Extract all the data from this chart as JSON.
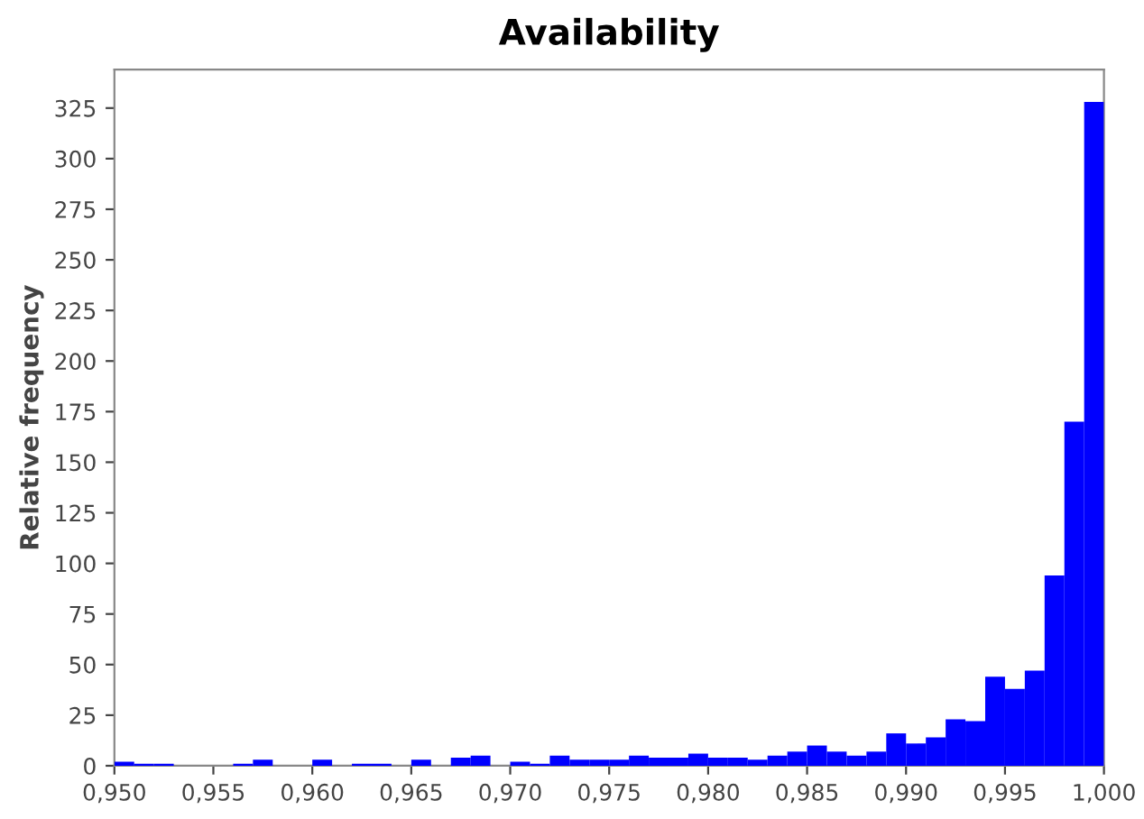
{
  "chart_data": {
    "type": "histogram",
    "title": "Availability",
    "ylabel": "Relative frequency",
    "bins": [
      0.95,
      0.951,
      0.952,
      0.953,
      0.954,
      0.955,
      0.956,
      0.957,
      0.958,
      0.959,
      0.96,
      0.961,
      0.962,
      0.963,
      0.964,
      0.965,
      0.966,
      0.967,
      0.968,
      0.969,
      0.97,
      0.971,
      0.972,
      0.973,
      0.974,
      0.975,
      0.976,
      0.977,
      0.978,
      0.979,
      0.98,
      0.981,
      0.982,
      0.983,
      0.984,
      0.985,
      0.986,
      0.987,
      0.988,
      0.989,
      0.99,
      0.991,
      0.992,
      0.993,
      0.994,
      0.995,
      0.996,
      0.997,
      0.998,
      0.999,
      1.0
    ],
    "values": [
      2,
      1,
      1,
      0,
      0,
      0,
      1,
      3,
      0,
      0,
      3,
      0,
      1,
      1,
      0,
      3,
      0,
      4,
      5,
      0,
      2,
      1,
      5,
      3,
      3,
      3,
      5,
      4,
      4,
      6,
      4,
      4,
      3,
      5,
      7,
      10,
      7,
      5,
      7,
      16,
      11,
      14,
      23,
      22,
      44,
      38,
      47,
      94,
      170,
      328
    ],
    "color": "#0000ff",
    "xlim": [
      0.95,
      1.0
    ],
    "xticks": [
      {
        "value": 0.95,
        "label": "0,950"
      },
      {
        "value": 0.955,
        "label": "0,955"
      },
      {
        "value": 0.96,
        "label": "0,960"
      },
      {
        "value": 0.965,
        "label": "0,965"
      },
      {
        "value": 0.97,
        "label": "0,970"
      },
      {
        "value": 0.975,
        "label": "0,975"
      },
      {
        "value": 0.98,
        "label": "0,980"
      },
      {
        "value": 0.985,
        "label": "0,985"
      },
      {
        "value": 0.99,
        "label": "0,990"
      },
      {
        "value": 0.995,
        "label": "0,995"
      },
      {
        "value": 1.0,
        "label": "1,000"
      }
    ],
    "ylim": [
      0,
      344
    ],
    "yticks": [
      0,
      25,
      50,
      75,
      100,
      125,
      150,
      175,
      200,
      225,
      250,
      275,
      300,
      325
    ],
    "grid": false,
    "legend": false
  }
}
